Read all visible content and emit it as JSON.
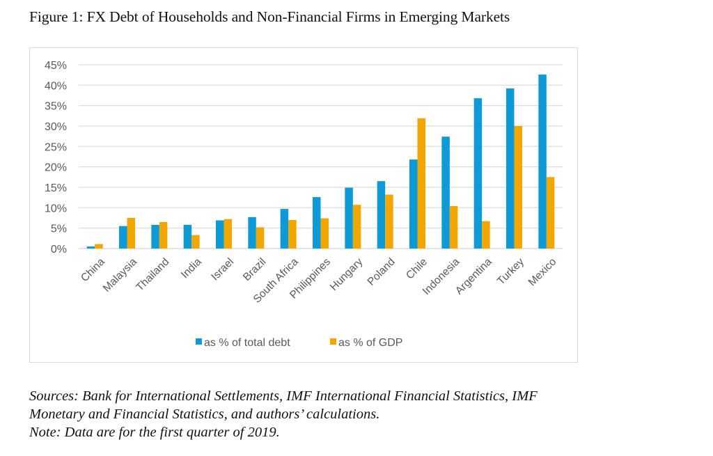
{
  "figure": {
    "title": "Figure 1: FX Debt of Households and Non-Financial Firms in Emerging Markets",
    "notes": [
      "Sources: Bank for International Settlements, IMF International Financial Statistics, IMF",
      "Monetary and Financial Statistics, and authors’ calculations.",
      "Note: Data are for the first quarter of 2019."
    ]
  },
  "chart_data": {
    "type": "bar",
    "title": "",
    "xlabel": "",
    "ylabel": "",
    "ylim": [
      0,
      45
    ],
    "yticks": [
      0,
      5,
      10,
      15,
      20,
      25,
      30,
      35,
      40,
      45
    ],
    "ytick_labels": [
      "0%",
      "5%",
      "10%",
      "15%",
      "20%",
      "25%",
      "30%",
      "35%",
      "40%",
      "45%"
    ],
    "grid": true,
    "legend_position": "bottom",
    "categories": [
      "China",
      "Malaysia",
      "Thailand",
      "India",
      "Israel",
      "Brazil",
      "South Africa",
      "Philippines",
      "Hungary",
      "Poland",
      "Chile",
      "Indonesia",
      "Argentina",
      "Turkey",
      "Mexico"
    ],
    "series": [
      {
        "name": "as % of total debt",
        "color": "#0e9ad7",
        "values": [
          0.5,
          5.5,
          5.8,
          5.8,
          6.9,
          7.7,
          9.7,
          12.6,
          14.9,
          16.5,
          21.8,
          27.4,
          36.8,
          39.2,
          42.6
        ]
      },
      {
        "name": "as % of GDP",
        "color": "#f2a600",
        "values": [
          1.1,
          7.5,
          6.5,
          3.3,
          7.2,
          5.2,
          7.0,
          7.4,
          10.7,
          13.2,
          31.9,
          10.4,
          6.7,
          30.0,
          17.5
        ]
      }
    ]
  }
}
